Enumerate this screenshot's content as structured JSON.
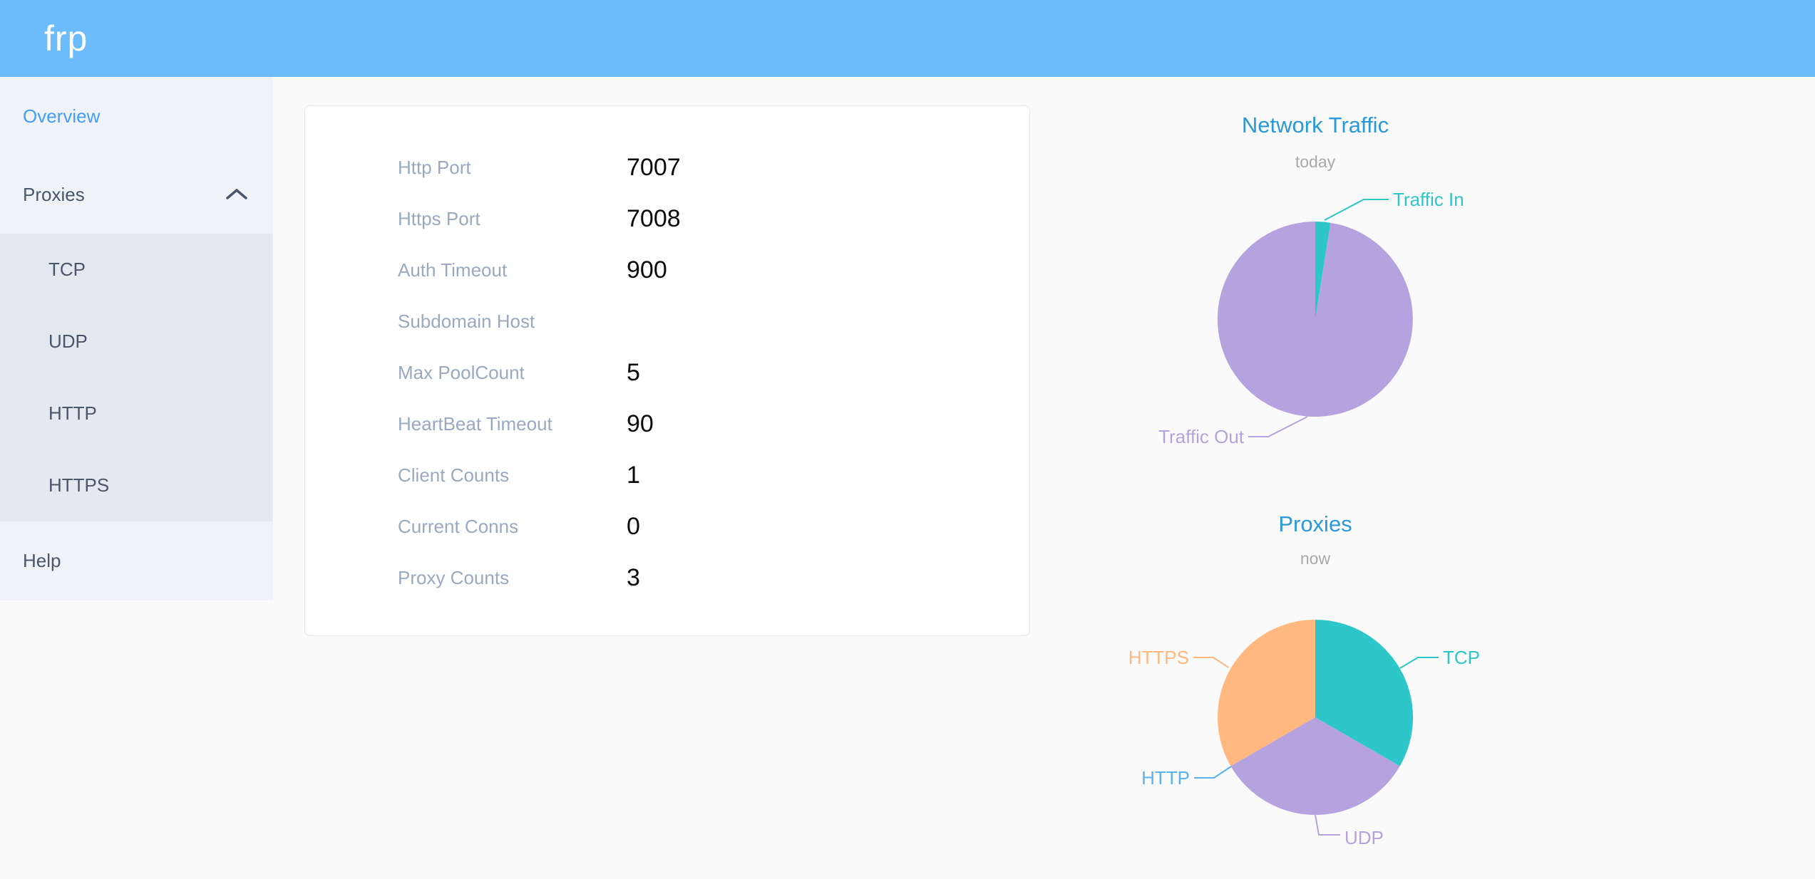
{
  "header": {
    "logo": "frp"
  },
  "sidebar": {
    "overview": "Overview",
    "proxies": "Proxies",
    "submenu": [
      "TCP",
      "UDP",
      "HTTP",
      "HTTPS"
    ],
    "help": "Help",
    "active_item": "Overview",
    "proxies_expanded": true
  },
  "server_info": {
    "rows": [
      {
        "label": "Http Port",
        "value": "7007"
      },
      {
        "label": "Https Port",
        "value": "7008"
      },
      {
        "label": "Auth Timeout",
        "value": "900"
      },
      {
        "label": "Subdomain Host",
        "value": ""
      },
      {
        "label": "Max PoolCount",
        "value": "5"
      },
      {
        "label": "HeartBeat Timeout",
        "value": "90"
      },
      {
        "label": "Client Counts",
        "value": "1"
      },
      {
        "label": "Current Conns",
        "value": "0"
      },
      {
        "label": "Proxy Counts",
        "value": "3"
      }
    ]
  },
  "chart_data": [
    {
      "type": "pie",
      "title": "Network Traffic",
      "subtitle": "today",
      "start_angle": 90,
      "clockwise": true,
      "labels_position": "outside",
      "series": [
        {
          "name": "Traffic In",
          "percent": 2.5,
          "color": "#2ec7c9"
        },
        {
          "name": "Traffic Out",
          "percent": 97.5,
          "color": "#b6a2de"
        }
      ]
    },
    {
      "type": "pie",
      "title": "Proxies",
      "subtitle": "now",
      "start_angle": 90,
      "clockwise": true,
      "labels_position": "outside",
      "series": [
        {
          "name": "TCP",
          "percent": 33.33,
          "color": "#2ec7c9"
        },
        {
          "name": "UDP",
          "percent": 33.33,
          "color": "#b6a2de"
        },
        {
          "name": "HTTP",
          "percent": 0,
          "color": "#5ab1ef"
        },
        {
          "name": "HTTPS",
          "percent": 33.34,
          "color": "#ffb980"
        }
      ]
    }
  ],
  "colors": {
    "header_background": "#6cbcfb",
    "sidebar_background": "#eff2f7",
    "submenu_background": "#e4e8f1",
    "sidebar_text": "#48576a",
    "sidebar_active": "#459df6",
    "chart_title": "#2b99d8",
    "chart_subtitle": "#a9a9a9",
    "card_label": "#99a9bf",
    "card_value": "#0b0b0b",
    "teal": "#2ec7c9",
    "purple": "#b6a2de",
    "orange": "#ffb980",
    "blue": "#5ab1ef"
  }
}
